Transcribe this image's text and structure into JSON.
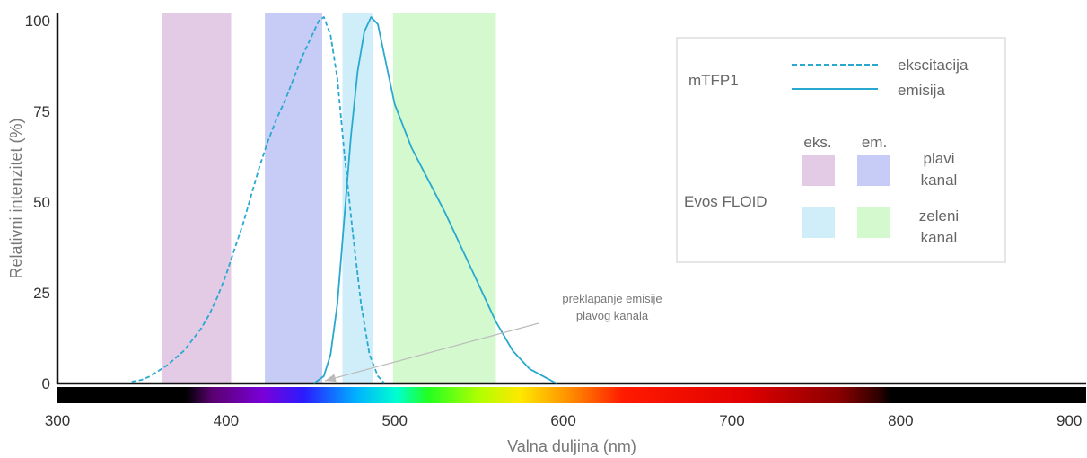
{
  "chart_data": {
    "type": "line",
    "xlabel": "Valna duljina (nm)",
    "ylabel": "Relativni intenzitet (%)",
    "xlim": [
      300,
      910
    ],
    "ylim": [
      0,
      102
    ],
    "x_ticks": [
      300,
      400,
      500,
      600,
      700,
      800,
      900
    ],
    "y_ticks": [
      0,
      25,
      50,
      75,
      100
    ],
    "grid": false,
    "legend_position": "top-right",
    "series": [
      {
        "name": "ekscitacija",
        "style": "dashed",
        "color": "#29a9cf",
        "points": [
          [
            344,
            0.5
          ],
          [
            350,
            1
          ],
          [
            355,
            2
          ],
          [
            360,
            3.5
          ],
          [
            365,
            5
          ],
          [
            370,
            7
          ],
          [
            375,
            9
          ],
          [
            380,
            12
          ],
          [
            385,
            15
          ],
          [
            390,
            19
          ],
          [
            395,
            24
          ],
          [
            400,
            30
          ],
          [
            405,
            37
          ],
          [
            410,
            44
          ],
          [
            415,
            52
          ],
          [
            420,
            60
          ],
          [
            425,
            67
          ],
          [
            430,
            73
          ],
          [
            435,
            78
          ],
          [
            440,
            84
          ],
          [
            445,
            90
          ],
          [
            450,
            95
          ],
          [
            455,
            100
          ],
          [
            458,
            101
          ],
          [
            462,
            96
          ],
          [
            466,
            84
          ],
          [
            470,
            64
          ],
          [
            475,
            42
          ],
          [
            480,
            22
          ],
          [
            485,
            8
          ],
          [
            490,
            2
          ],
          [
            494,
            0
          ]
        ]
      },
      {
        "name": "emisija",
        "style": "solid",
        "color": "#29a9cf",
        "points": [
          [
            452,
            0
          ],
          [
            458,
            2
          ],
          [
            462,
            8
          ],
          [
            466,
            22
          ],
          [
            470,
            45
          ],
          [
            474,
            68
          ],
          [
            478,
            86
          ],
          [
            482,
            97
          ],
          [
            486,
            101
          ],
          [
            490,
            99
          ],
          [
            495,
            88
          ],
          [
            500,
            77
          ],
          [
            510,
            65
          ],
          [
            520,
            56
          ],
          [
            530,
            47
          ],
          [
            540,
            37
          ],
          [
            550,
            27
          ],
          [
            560,
            17
          ],
          [
            570,
            9
          ],
          [
            580,
            4
          ],
          [
            590,
            1.5
          ],
          [
            596,
            0
          ]
        ]
      }
    ],
    "bands": [
      {
        "group": "plavi kanal",
        "role": "eks.",
        "x": [
          362,
          403
        ],
        "color": "#e3cbe6"
      },
      {
        "group": "plavi kanal",
        "role": "em.",
        "x": [
          423,
          457
        ],
        "color": "#c6ccf5"
      },
      {
        "group": "zeleni kanal",
        "role": "eks.",
        "x": [
          469,
          487
        ],
        "color": "#d0eefa"
      },
      {
        "group": "zeleni kanal",
        "role": "em.",
        "x": [
          499,
          560
        ],
        "color": "#d5f9ce"
      }
    ],
    "spectrum_bar": [
      300,
      910
    ],
    "annotation": {
      "lines": [
        "preklapanje emisije",
        "plavog kanala"
      ],
      "points_to": [
        457,
        0
      ]
    }
  },
  "legend": {
    "fluorophore": "mTFP1",
    "line_dashed_label": "ekscitacija",
    "line_solid_label": "emisija",
    "instrument": "Evos FLOID",
    "col_ex": "eks.",
    "col_em": "em.",
    "blue_channel_1": "plavi",
    "blue_channel_2": "kanal",
    "green_channel_1": "zeleni",
    "green_channel_2": "kanal",
    "swatch_blue_ex": "#e3cbe6",
    "swatch_blue_em": "#c6ccf5",
    "swatch_green_ex": "#d0eefa",
    "swatch_green_em": "#d5f9ce"
  }
}
